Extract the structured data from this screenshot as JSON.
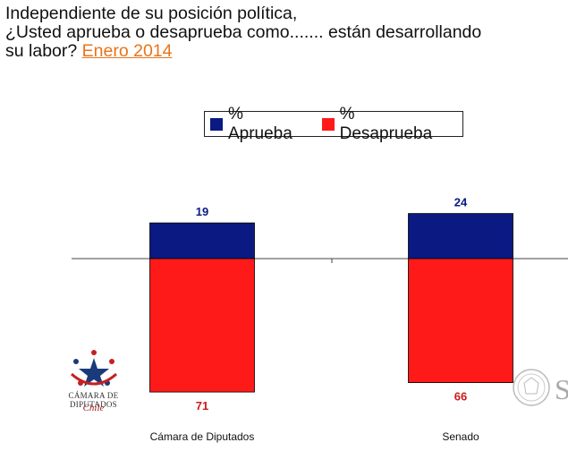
{
  "header": {
    "title": "Independiente de su posición política,\n¿Usted aprueba o desaprueba como....... están desarrollando\nsu labor? ",
    "date_link": "Enero 2014"
  },
  "legend": {
    "items": [
      {
        "label": "% Aprueba",
        "color": "#0a1a82"
      },
      {
        "label": "% Desaprueba",
        "color": "#ff1a1a"
      }
    ]
  },
  "logo": {
    "name": "CÁMARA DE DIPUTADOS",
    "country": "Chile",
    "icon": "star-people-logo"
  },
  "seal": {
    "icon": "senado-seal",
    "letter": "S"
  },
  "chart_data": {
    "type": "bar",
    "stacked": "diverging",
    "categories": [
      "Cámara de Diputados",
      "Senado"
    ],
    "series": [
      {
        "name": "% Aprueba",
        "values": [
          19,
          24
        ],
        "color": "#0a1a82"
      },
      {
        "name": "% Desaprueba",
        "values": [
          71,
          66
        ],
        "color": "#ff1a1a",
        "direction": "down"
      }
    ],
    "title": "",
    "xlabel": "",
    "ylabel": "",
    "grid": false,
    "legend_position": "top"
  }
}
